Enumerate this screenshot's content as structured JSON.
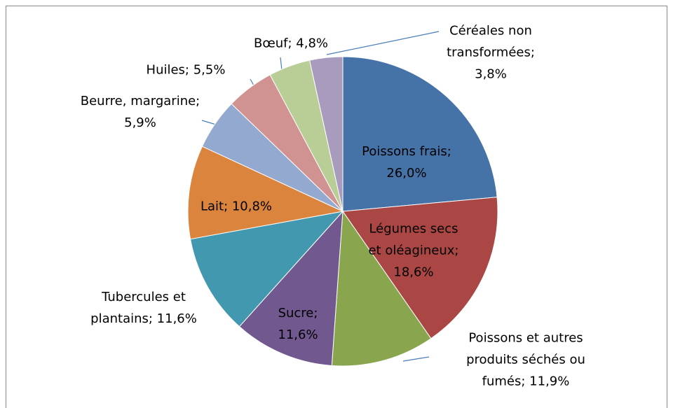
{
  "chart_data": {
    "type": "pie",
    "values": [
      26.0,
      18.6,
      11.9,
      11.6,
      11.6,
      10.8,
      5.9,
      5.5,
      4.8,
      3.8
    ],
    "value_labels": [
      "Poissons frais; 26,0%",
      "Légumes secs et oléagineux; 18,6%",
      "Poissons et autres produits séchés ou fumés; 11,9%",
      "Sucre; 11,6%",
      "Tubercules et plantains; 11,6%",
      "Lait; 10,8%",
      "Beurre, margarine; 5,9%",
      "Huiles; 5,5%",
      "Bœuf; 4,8%",
      "Céréales non transformées; 3,8%"
    ],
    "colors": [
      "#4572a7",
      "#aa4643",
      "#89a54e",
      "#71588f",
      "#4198af",
      "#db843d",
      "#93a9cf",
      "#d19392",
      "#b9cd96",
      "#a99bbd"
    ]
  }
}
